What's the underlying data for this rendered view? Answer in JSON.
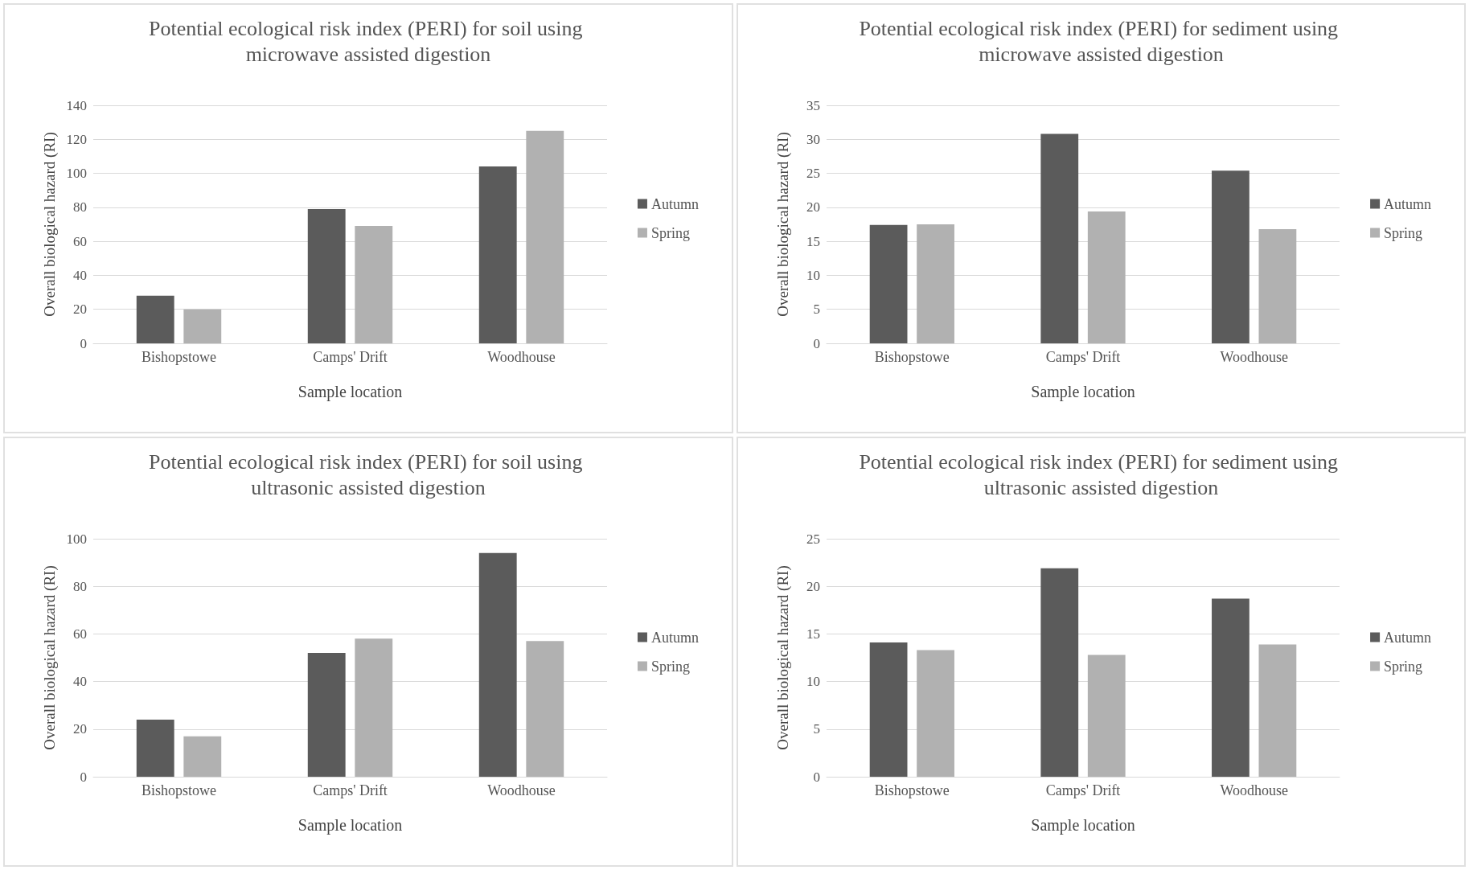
{
  "chart_data": [
    {
      "type": "bar",
      "title": "Potential ecological risk index (PERI) for soil using microwave assisted digestion",
      "xlabel": "Sample location",
      "ylabel": "Overall biological hazard (RI)",
      "categories": [
        "Bishopstowe",
        "Camps' Drift",
        "Woodhouse"
      ],
      "series": [
        {
          "name": "Autumn",
          "color": "#5b5b5b",
          "values": [
            28,
            79,
            104
          ]
        },
        {
          "name": "Spring",
          "color": "#b1b1b1",
          "values": [
            20,
            69,
            125
          ]
        }
      ],
      "ylim": [
        0,
        140
      ],
      "yticks": [
        0,
        20,
        40,
        60,
        80,
        100,
        120,
        140
      ],
      "grid": "y",
      "legend": "right"
    },
    {
      "type": "bar",
      "title": "Potential ecological risk index (PERI) for sediment using microwave assisted digestion",
      "xlabel": "Sample location",
      "ylabel": "Overall biological hazard (RI)",
      "categories": [
        "Bishopstowe",
        "Camps' Drift",
        "Woodhouse"
      ],
      "series": [
        {
          "name": "Autumn",
          "color": "#5b5b5b",
          "values": [
            17.4,
            30.8,
            25.4
          ]
        },
        {
          "name": "Spring",
          "color": "#b1b1b1",
          "values": [
            17.5,
            19.4,
            16.8
          ]
        }
      ],
      "ylim": [
        0,
        35
      ],
      "yticks": [
        0,
        5,
        10,
        15,
        20,
        25,
        30,
        35
      ],
      "grid": "y",
      "legend": "right"
    },
    {
      "type": "bar",
      "title": "Potential ecological risk index (PERI) for soil using ultrasonic assisted digestion",
      "xlabel": "Sample location",
      "ylabel": "Overall biological hazard (RI)",
      "categories": [
        "Bishopstowe",
        "Camps' Drift",
        "Woodhouse"
      ],
      "series": [
        {
          "name": "Autumn",
          "color": "#5b5b5b",
          "values": [
            24,
            52,
            94
          ]
        },
        {
          "name": "Spring",
          "color": "#b1b1b1",
          "values": [
            17,
            58,
            57
          ]
        }
      ],
      "ylim": [
        0,
        100
      ],
      "yticks": [
        0,
        20,
        40,
        60,
        80,
        100
      ],
      "grid": "y",
      "legend": "right"
    },
    {
      "type": "bar",
      "title": "Potential ecological risk index (PERI) for sediment using ultrasonic assisted digestion",
      "xlabel": "Sample location",
      "ylabel": "Overall biological hazard (RI)",
      "categories": [
        "Bishopstowe",
        "Camps' Drift",
        "Woodhouse"
      ],
      "series": [
        {
          "name": "Autumn",
          "color": "#5b5b5b",
          "values": [
            14.1,
            21.9,
            18.7
          ]
        },
        {
          "name": "Spring",
          "color": "#b1b1b1",
          "values": [
            13.3,
            12.8,
            13.9
          ]
        }
      ],
      "ylim": [
        0,
        25
      ],
      "yticks": [
        0,
        5,
        10,
        15,
        20,
        25
      ],
      "grid": "y",
      "legend": "right"
    }
  ]
}
